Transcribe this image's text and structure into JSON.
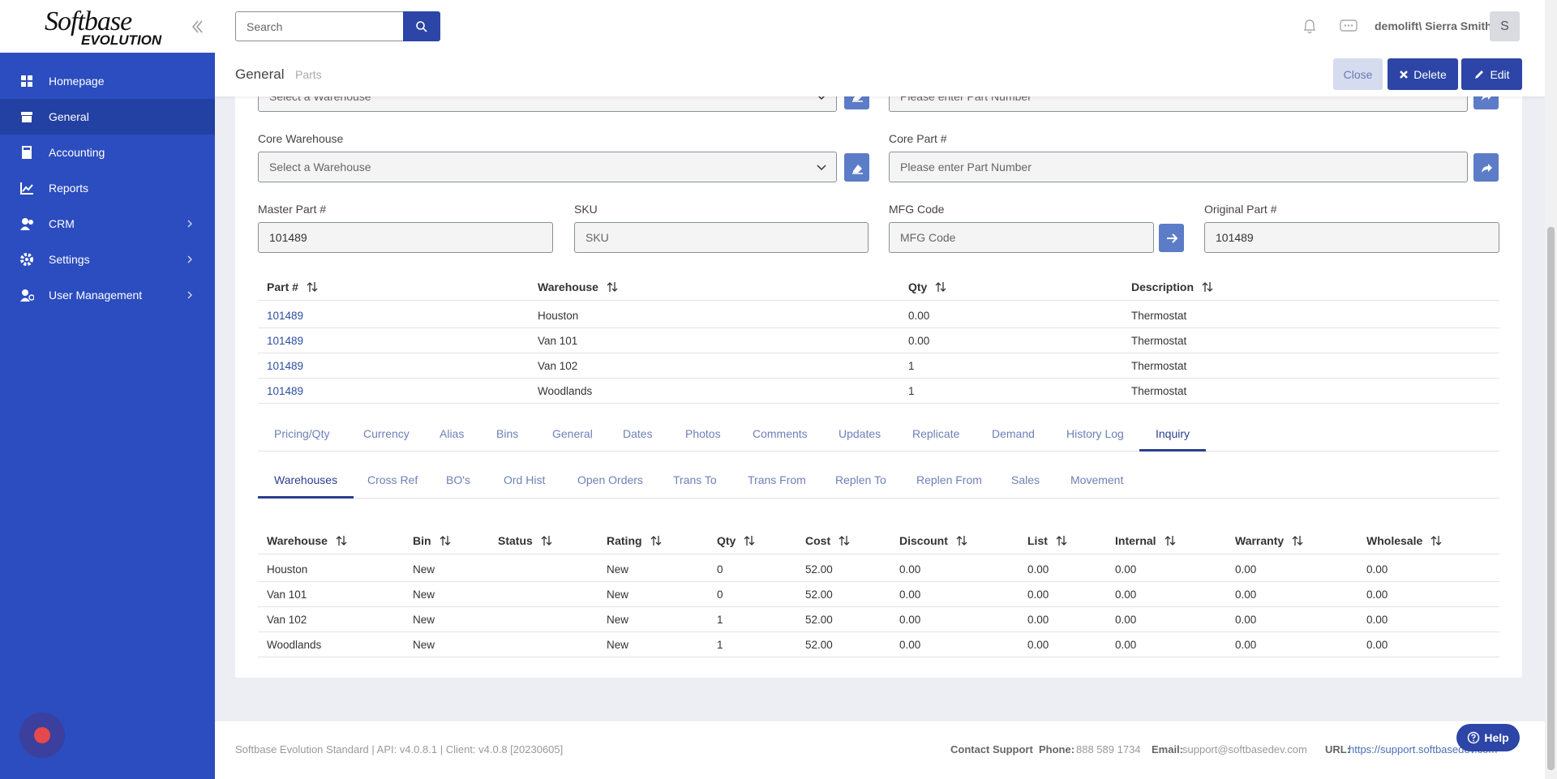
{
  "logo": {
    "brand": "Softbase",
    "product": "EVOLUTION"
  },
  "sidebar": {
    "nav": [
      "Homepage",
      "General",
      "Accounting",
      "Reports",
      "CRM",
      "Settings",
      "User Management"
    ],
    "active": 1
  },
  "header": {
    "search_placeholder": "Search",
    "user": "demolift\\ Sierra Smith",
    "avatar": "S"
  },
  "breadcrumb": {
    "current": "General",
    "parent": "Parts"
  },
  "actions": {
    "close": "Close",
    "delete": "Delete",
    "edit": "Edit"
  },
  "form": {
    "top_warehouse_placeholder": "Select a Warehouse",
    "top_part_placeholder": "Please enter Part Number",
    "core_warehouse": {
      "label": "Core Warehouse",
      "placeholder": "Select a Warehouse"
    },
    "core_part": {
      "label": "Core Part #",
      "placeholder": "Please enter Part Number"
    },
    "master_part": {
      "label": "Master Part #",
      "value": "101489"
    },
    "sku": {
      "label": "SKU",
      "placeholder": "SKU"
    },
    "mfg_code": {
      "label": "MFG Code",
      "placeholder": "MFG Code"
    },
    "original_part": {
      "label": "Original Part #",
      "value": "101489"
    }
  },
  "parts_table": {
    "columns": [
      "Part #",
      "Warehouse",
      "Qty",
      "Description"
    ],
    "rows": [
      [
        "101489",
        "Houston",
        "0.00",
        "Thermostat"
      ],
      [
        "101489",
        "Van 101",
        "0.00",
        "Thermostat"
      ],
      [
        "101489",
        "Van 102",
        "1",
        "Thermostat"
      ],
      [
        "101489",
        "Woodlands",
        "1",
        "Thermostat"
      ]
    ]
  },
  "tabs": {
    "items": [
      "Pricing/Qty",
      "Currency",
      "Alias",
      "Bins",
      "General",
      "Dates",
      "Photos",
      "Comments",
      "Updates",
      "Replicate",
      "Demand",
      "History Log",
      "Inquiry"
    ],
    "active": 12
  },
  "subtabs": {
    "items": [
      "Warehouses",
      "Cross Ref",
      "BO's",
      "Ord Hist",
      "Open Orders",
      "Trans To",
      "Trans From",
      "Replen To",
      "Replen From",
      "Sales",
      "Movement"
    ],
    "active": 0
  },
  "warehouse_table": {
    "columns": [
      "Warehouse",
      "Bin",
      "Status",
      "Rating",
      "Qty",
      "Cost",
      "Discount",
      "List",
      "Internal",
      "Warranty",
      "Wholesale"
    ],
    "rows": [
      [
        "Houston",
        "New",
        "",
        "New",
        "0",
        "52.00",
        "0.00",
        "0.00",
        "0.00",
        "0.00",
        "0.00"
      ],
      [
        "Van 101",
        "New",
        "",
        "New",
        "0",
        "52.00",
        "0.00",
        "0.00",
        "0.00",
        "0.00",
        "0.00"
      ],
      [
        "Van 102",
        "New",
        "",
        "New",
        "1",
        "52.00",
        "0.00",
        "0.00",
        "0.00",
        "0.00",
        "0.00"
      ],
      [
        "Woodlands",
        "New",
        "",
        "New",
        "1",
        "52.00",
        "0.00",
        "0.00",
        "0.00",
        "0.00",
        "0.00"
      ]
    ]
  },
  "footer": {
    "version": "Softbase Evolution Standard | API: v4.0.8.1 | Client: v4.0.8 [20230605]",
    "contact": "Contact Support",
    "phone_label": "Phone:",
    "phone": "888 589 1734",
    "email_label": "Email:",
    "email": "support@softbasedev.com",
    "url_label": "URL:",
    "url": "https://support.softbasedev.com"
  },
  "help": "Help"
}
